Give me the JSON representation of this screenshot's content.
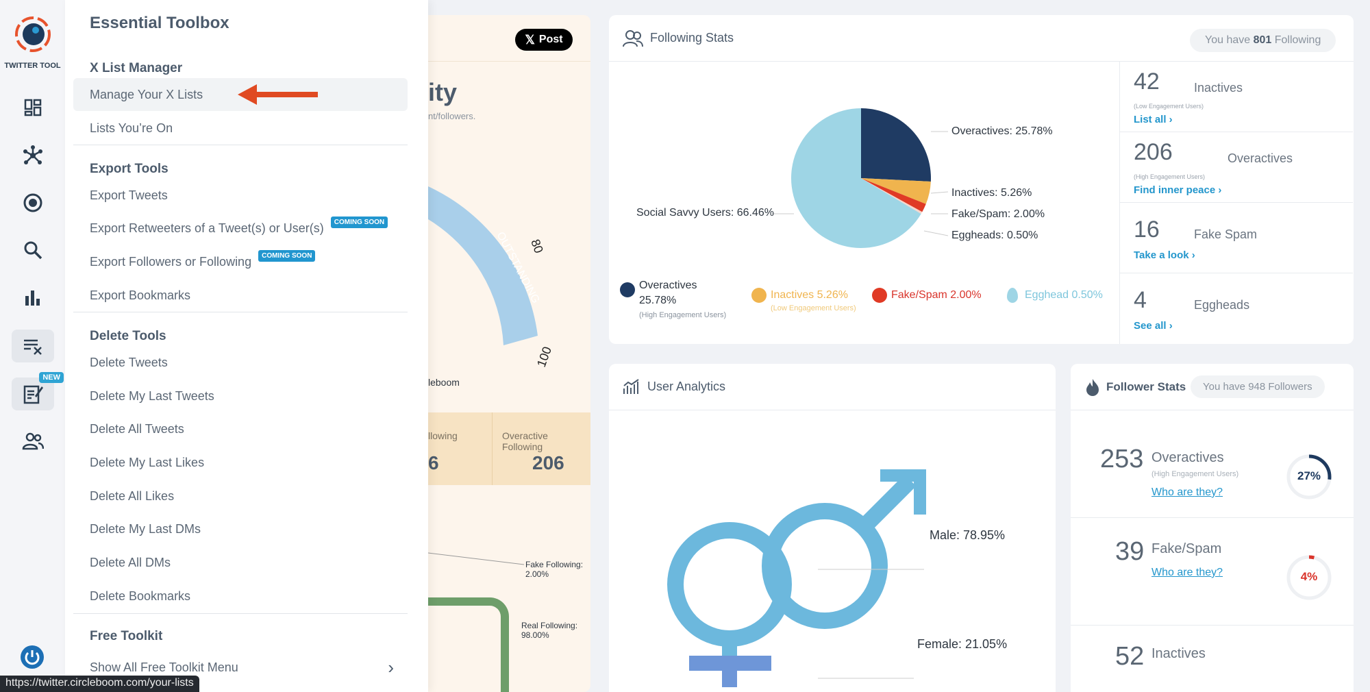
{
  "brand": {
    "logo_text": "TWITTER TOOL",
    "new_badge": "NEW"
  },
  "toolbox": {
    "title": "Essential Toolbox",
    "sections": [
      {
        "heading": "X List Manager",
        "items": [
          "Manage Your X Lists",
          "Lists You’re On"
        ]
      },
      {
        "heading": "Export Tools",
        "items": [
          "Export Tweets",
          "Export Retweeters of a Tweet(s) or User(s)",
          "Export Followers or Following",
          "Export Bookmarks"
        ]
      },
      {
        "heading": "Delete Tools",
        "items": [
          "Delete Tweets",
          "Delete My Last Tweets",
          "Delete All Tweets",
          "Delete My Last Likes",
          "Delete All Likes",
          "Delete My Last DMs",
          "Delete All DMs",
          "Delete Bookmarks"
        ]
      },
      {
        "heading": "Free Toolkit",
        "items": [
          "Show All Free Toolkit Menu"
        ]
      }
    ],
    "coming_soon": "COMING SOON"
  },
  "bg_card": {
    "post_button": "Post",
    "title_fragment": "ity",
    "subtitle_fragment": "nt/followers.",
    "gauge_band": "OUTSTANDING",
    "gauge_80": "80",
    "gauge_100": "100",
    "brand_fragment": "leboom",
    "following_fragment": "llowing",
    "following_value_fragment": "6",
    "overactive_following_label": "Overactive Following",
    "overactive_following_value": "206",
    "fake_following": "Fake Following: 2.00%",
    "real_following": "Real Following: 98.00%"
  },
  "following_stats": {
    "title": "Following Stats",
    "pill_prefix": "You have",
    "pill_count": "801",
    "pill_suffix": "Following",
    "labels": {
      "overactives": "Overactives: 25.78%",
      "inactives": "Inactives: 5.26%",
      "fake": "Fake/Spam: 2.00%",
      "eggheads": "Eggheads: 0.50%",
      "social": "Social Savvy Users: 66.46%"
    },
    "legend": {
      "overactives_line1": "Overactives",
      "overactives_line2": "25.78%",
      "overactives_sub": "(High Engagement Users)",
      "inactives": "Inactives 5.26%",
      "inactives_sub": "(Low Engagement Users)",
      "fake": "Fake/Spam 2.00%",
      "egghead": "Egghead 0.50%"
    },
    "side": [
      {
        "num": "42",
        "label": "Inactives",
        "sub": "(Low Engagement Users)",
        "link": "List all ›"
      },
      {
        "num": "206",
        "label": "Overactives",
        "sub": "(High Engagement Users)",
        "link": "Find inner peace ›"
      },
      {
        "num": "16",
        "label": "Fake Spam",
        "sub": "",
        "link": "Take a look ›"
      },
      {
        "num": "4",
        "label": "Eggheads",
        "sub": "",
        "link": "See all ›"
      }
    ]
  },
  "user_analytics": {
    "title": "User Analytics",
    "male": "Male: 78.95%",
    "female": "Female: 21.05%"
  },
  "follower_stats": {
    "title": "Follower Stats",
    "pill_prefix": "You have",
    "pill_count": "948",
    "pill_suffix": "Followers",
    "rows": [
      {
        "num": "253",
        "label": "Overactives",
        "sub": "(High Engagement Users)",
        "link": "Who are they?",
        "pct": "27%",
        "frac": 0.27,
        "color": "#1e3a5f"
      },
      {
        "num": "39",
        "label": "Fake/Spam",
        "sub": "",
        "link": "Who are they?",
        "pct": "4%",
        "frac": 0.04,
        "color": "#d9342b"
      },
      {
        "num": "52",
        "label": "Inactives"
      }
    ]
  },
  "chart_data": {
    "type": "pie",
    "title": "",
    "categories": [
      "Overactives",
      "Inactives",
      "Fake/Spam",
      "Eggheads",
      "Social Savvy Users"
    ],
    "values": [
      25.78,
      5.26,
      2.0,
      0.5,
      66.46
    ],
    "colors": [
      "#1f3b63",
      "#f0b44e",
      "#e03a25",
      "#f6d6cc",
      "#9ed5e5"
    ]
  },
  "status_url": "https://twitter.circleboom.com/your-lists"
}
